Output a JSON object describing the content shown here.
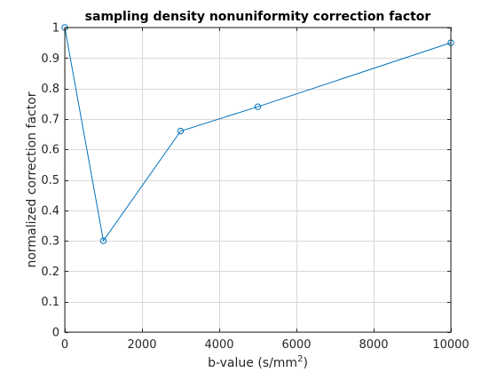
{
  "chart_data": {
    "type": "line",
    "title": "sampling density nonuniformity correction factor",
    "xlabel": "b-value (s/mm",
    "xlabel_superscript": "2",
    "xlabel_suffix": ")",
    "ylabel": "normalized correction factor",
    "xlim": [
      0,
      10000
    ],
    "ylim": [
      0,
      1
    ],
    "xticks": [
      0,
      2000,
      4000,
      6000,
      8000,
      10000
    ],
    "yticks": [
      0,
      0.1,
      0.2,
      0.3,
      0.4,
      0.5,
      0.6,
      0.7,
      0.8,
      0.9,
      1
    ],
    "grid": true,
    "marker": "circle",
    "series_color": "#0072bd",
    "series": [
      {
        "x": [
          0,
          1000,
          3000,
          5000,
          10000
        ],
        "y": [
          1.0,
          0.3,
          0.66,
          0.74,
          0.95
        ]
      }
    ]
  }
}
